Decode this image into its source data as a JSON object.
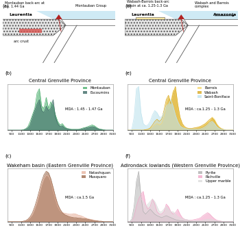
{
  "chart_data": [
    {
      "type": "area",
      "panel": "(b)",
      "title": "Central Grenville Province",
      "annotation": "MDA : 1.45 - 1.47 Ga",
      "x": [
        800,
        850,
        900,
        950,
        1000,
        1050,
        1100,
        1150,
        1200,
        1250,
        1300,
        1350,
        1400,
        1450,
        1500,
        1550,
        1600,
        1650,
        1700,
        1750,
        1800,
        1850,
        1900,
        1950,
        2000,
        2050,
        2100,
        2150,
        2200,
        2250,
        2300,
        2350,
        2400,
        2450,
        2500,
        2550,
        2600,
        2650,
        2700,
        2750,
        2800,
        2850,
        2900,
        2950,
        3000,
        3050,
        3100
      ],
      "xlim": [
        800,
        3100
      ],
      "xticks": [
        900,
        1100,
        1300,
        1500,
        1700,
        1900,
        2100,
        2300,
        2500,
        2700,
        2900,
        3100
      ],
      "ylim": [
        0,
        1.05
      ],
      "yticks": [],
      "tick_labels": "x",
      "grid": false,
      "legend": "upper right",
      "series": [
        {
          "name": "Montauban",
          "color": "#4caf6e",
          "values": [
            0,
            0,
            0,
            0,
            0,
            0,
            0,
            0.01,
            0.03,
            0.08,
            0.2,
            0.35,
            0.5,
            0.85,
            0.95,
            0.55,
            0.5,
            0.75,
            0.5,
            0.65,
            0.55,
            0.35,
            0.2,
            0.12,
            0.15,
            0.08,
            0.04,
            0.03,
            0.02,
            0.02,
            0.02,
            0.02,
            0.03,
            0.05,
            0.06,
            0.08,
            0.1,
            0.12,
            0.1,
            0.06,
            0.03,
            0.02,
            0.01,
            0,
            0,
            0,
            0
          ]
        },
        {
          "name": "Escoumins",
          "color": "#3d6b66",
          "values": [
            0,
            0,
            0,
            0,
            0,
            0,
            0,
            0,
            0.02,
            0.05,
            0.12,
            0.3,
            0.45,
            0.6,
            0.7,
            0.45,
            0.4,
            0.55,
            0.45,
            0.5,
            0.7,
            0.3,
            0.15,
            0.08,
            0.1,
            0.05,
            0.03,
            0.02,
            0.01,
            0.01,
            0.01,
            0.01,
            0.02,
            0.03,
            0.05,
            0.06,
            0.07,
            0.08,
            0.07,
            0.04,
            0.02,
            0.01,
            0,
            0,
            0,
            0,
            0
          ]
        }
      ]
    },
    {
      "type": "area",
      "panel": "(c)",
      "title": "Wakeham basin (Eastern Grenville Province)",
      "annotation": "MDA : ca.1.5 Ga",
      "x": [
        800,
        850,
        900,
        950,
        1000,
        1050,
        1100,
        1150,
        1200,
        1250,
        1300,
        1350,
        1400,
        1450,
        1500,
        1550,
        1600,
        1650,
        1700,
        1750,
        1800,
        1850,
        1900,
        1950,
        2000,
        2050,
        2100,
        2150,
        2200,
        2250,
        2300,
        2350,
        2400,
        2450,
        2500,
        2550,
        2600,
        2650,
        2700,
        2750,
        2800,
        2850,
        2900,
        2950,
        3000,
        3050,
        3100
      ],
      "xlim": [
        800,
        3100
      ],
      "xticks": [
        900,
        1100,
        1300,
        1500,
        1700,
        1900,
        2100,
        2300,
        2500,
        2700,
        2900,
        3100
      ],
      "ylim": [
        0,
        1.05
      ],
      "yticks": [],
      "tick_labels": "x",
      "grid": false,
      "legend": "upper right",
      "series": [
        {
          "name": "Natashquan",
          "color": "#e8b4a0",
          "values": [
            0,
            0,
            0,
            0,
            0,
            0,
            0,
            0.01,
            0.02,
            0.04,
            0.08,
            0.14,
            0.25,
            0.38,
            0.55,
            0.72,
            0.85,
            0.92,
            0.9,
            0.8,
            0.62,
            0.45,
            0.3,
            0.22,
            0.18,
            0.17,
            0.16,
            0.15,
            0.15,
            0.16,
            0.15,
            0.13,
            0.12,
            0.1,
            0.08,
            0.06,
            0.05,
            0.04,
            0.03,
            0.02,
            0.01,
            0.01,
            0,
            0,
            0,
            0,
            0
          ]
        },
        {
          "name": "Musquaro",
          "color": "#9c6b4e",
          "values": [
            0,
            0,
            0,
            0,
            0,
            0,
            0,
            0.01,
            0.02,
            0.05,
            0.1,
            0.18,
            0.3,
            0.45,
            0.62,
            0.8,
            0.93,
            1.0,
            0.97,
            0.85,
            0.68,
            0.5,
            0.35,
            0.25,
            0.18,
            0.14,
            0.12,
            0.1,
            0.09,
            0.08,
            0.08,
            0.07,
            0.07,
            0.06,
            0.06,
            0.05,
            0.04,
            0.03,
            0.02,
            0.02,
            0.01,
            0.01,
            0,
            0,
            0,
            0,
            0
          ]
        }
      ]
    },
    {
      "type": "area",
      "panel": "(e)",
      "title": "Central Grenville Province",
      "annotation": "MDA : ca.1.25 - 1.3 Ga",
      "x": [
        800,
        850,
        900,
        950,
        1000,
        1050,
        1100,
        1150,
        1200,
        1250,
        1300,
        1350,
        1400,
        1450,
        1500,
        1550,
        1600,
        1650,
        1700,
        1750,
        1800,
        1850,
        1900,
        1950,
        2000,
        2050,
        2100,
        2150,
        2200,
        2250,
        2300,
        2350,
        2400,
        2450,
        2500,
        2550,
        2600,
        2650,
        2700,
        2750,
        2800,
        2850,
        2900,
        2950,
        3000,
        3050,
        3100
      ],
      "xlim": [
        800,
        3100
      ],
      "xticks": [
        900,
        1100,
        1300,
        1500,
        1700,
        1900,
        2100,
        2300,
        2500,
        2700,
        2900,
        3100
      ],
      "ylim": [
        0,
        1.05
      ],
      "yticks": [],
      "tick_labels": "x",
      "grid": false,
      "legend": "upper right",
      "series": [
        {
          "name": "Barrois",
          "color": "#f5d76e",
          "values": [
            0,
            0,
            0,
            0,
            0,
            0,
            0,
            0,
            0.01,
            0.02,
            0.04,
            0.08,
            0.12,
            0.15,
            0.12,
            0.15,
            0.3,
            0.55,
            0.75,
            0.65,
            0.9,
            0.95,
            0.55,
            0.25,
            0.12,
            0.06,
            0.04,
            0.03,
            0.03,
            0.04,
            0.05,
            0.06,
            0.08,
            0.1,
            0.14,
            0.18,
            0.22,
            0.3,
            0.25,
            0.15,
            0.08,
            0.04,
            0.02,
            0,
            0,
            0,
            0
          ]
        },
        {
          "name": "Wabash",
          "color": "#d9a920",
          "values": [
            0,
            0,
            0,
            0,
            0,
            0,
            0,
            0,
            0.01,
            0.02,
            0.05,
            0.12,
            0.2,
            0.25,
            0.2,
            0.25,
            0.45,
            0.7,
            0.8,
            0.6,
            0.85,
            1.0,
            0.6,
            0.3,
            0.15,
            0.08,
            0.05,
            0.04,
            0.04,
            0.05,
            0.06,
            0.07,
            0.09,
            0.12,
            0.15,
            0.2,
            0.25,
            0.28,
            0.22,
            0.12,
            0.06,
            0.03,
            0.01,
            0,
            0,
            0,
            0
          ]
        },
        {
          "name": "Saint-Boniface",
          "color": "#bfe3ee",
          "values": [
            0,
            0,
            0.02,
            0.3,
            0.95,
            1.0,
            0.4,
            0.15,
            0.1,
            0.12,
            0.2,
            0.35,
            0.45,
            0.4,
            0.3,
            0.3,
            0.4,
            0.55,
            0.6,
            0.7,
            0.55,
            0.35,
            0.2,
            0.1,
            0.06,
            0.04,
            0.03,
            0.02,
            0.02,
            0.02,
            0.02,
            0.02,
            0.03,
            0.05,
            0.08,
            0.12,
            0.18,
            0.2,
            0.15,
            0.08,
            0.04,
            0.02,
            0.01,
            0,
            0,
            0,
            0
          ]
        }
      ]
    },
    {
      "type": "area",
      "panel": "(f)",
      "title": "Adirondack lowlands (Western Grenville Province)",
      "annotation": "MDA : ca.1.25 - 1.3 Ga",
      "x": [
        800,
        850,
        900,
        950,
        1000,
        1050,
        1100,
        1150,
        1200,
        1250,
        1300,
        1350,
        1400,
        1450,
        1500,
        1550,
        1600,
        1650,
        1700,
        1750,
        1800,
        1850,
        1900,
        1950,
        2000,
        2050,
        2100,
        2150,
        2200,
        2250,
        2300,
        2350,
        2400,
        2450,
        2500,
        2550,
        2600,
        2650,
        2700,
        2750,
        2800,
        2850,
        2900,
        2950,
        3000,
        3050,
        3100
      ],
      "xlim": [
        800,
        3100
      ],
      "xticks": [
        900,
        1100,
        1300,
        1500,
        1700,
        1900,
        2100,
        2300,
        2500,
        2700,
        2900,
        3100
      ],
      "ylim": [
        0,
        1.05
      ],
      "yticks": [],
      "tick_labels": "x",
      "grid": false,
      "legend": "upper right",
      "series": [
        {
          "name": "Pyrite",
          "color": "#b0b0b0",
          "values": [
            0,
            0,
            0.05,
            0.3,
            0.8,
            1.0,
            0.5,
            0.2,
            0.15,
            0.2,
            0.25,
            0.2,
            0.15,
            0.12,
            0.1,
            0.08,
            0.1,
            0.12,
            0.1,
            0.08,
            0.06,
            0.04,
            0.03,
            0.02,
            0.02,
            0.01,
            0.01,
            0.01,
            0,
            0,
            0,
            0,
            0,
            0,
            0,
            0,
            0,
            0,
            0,
            0,
            0,
            0,
            0,
            0,
            0,
            0,
            0
          ]
        },
        {
          "name": "Richville",
          "color": "#f2a6c8",
          "values": [
            0,
            0,
            0.01,
            0.1,
            0.3,
            0.45,
            0.55,
            0.6,
            0.35,
            0.25,
            0.3,
            0.45,
            0.35,
            0.2,
            0.15,
            0.15,
            0.2,
            0.35,
            0.3,
            0.2,
            0.15,
            0.18,
            0.25,
            0.15,
            0.08,
            0.05,
            0.04,
            0.03,
            0.03,
            0.04,
            0.05,
            0.06,
            0.08,
            0.12,
            0.15,
            0.18,
            0.15,
            0.1,
            0.06,
            0.03,
            0.02,
            0.01,
            0,
            0,
            0,
            0,
            0
          ]
        },
        {
          "name": "Upper marble",
          "color": "#dcdcdc",
          "values": [
            0,
            0,
            0.02,
            0.2,
            0.6,
            0.7,
            0.45,
            0.4,
            0.3,
            0.35,
            0.4,
            0.45,
            0.4,
            0.3,
            0.2,
            0.2,
            0.25,
            0.3,
            0.25,
            0.2,
            0.2,
            0.15,
            0.1,
            0.08,
            0.06,
            0.05,
            0.04,
            0.03,
            0.02,
            0.02,
            0.02,
            0.02,
            0.02,
            0.03,
            0.04,
            0.05,
            0.05,
            0.04,
            0.03,
            0.02,
            0.01,
            0.01,
            0,
            0,
            0,
            0,
            0
          ]
        }
      ]
    }
  ],
  "diagrams": [
    {
      "panel": "(a)",
      "labels": {
        "continent": "Laurentia",
        "back_arc": "Montauban back-arc at\nca. 1.44 Ga",
        "group": "Montauban Group",
        "crust": "arc crust"
      }
    },
    {
      "panel": "(d)",
      "labels": {
        "continent": "Laurentia",
        "other_continent": "Amazonia",
        "back_arc": "Wabash-Barrois back-arc\nbasin at ca. 1.25-1.3 Ga",
        "group": "Wabash and Barrois\ncomplex"
      }
    }
  ]
}
